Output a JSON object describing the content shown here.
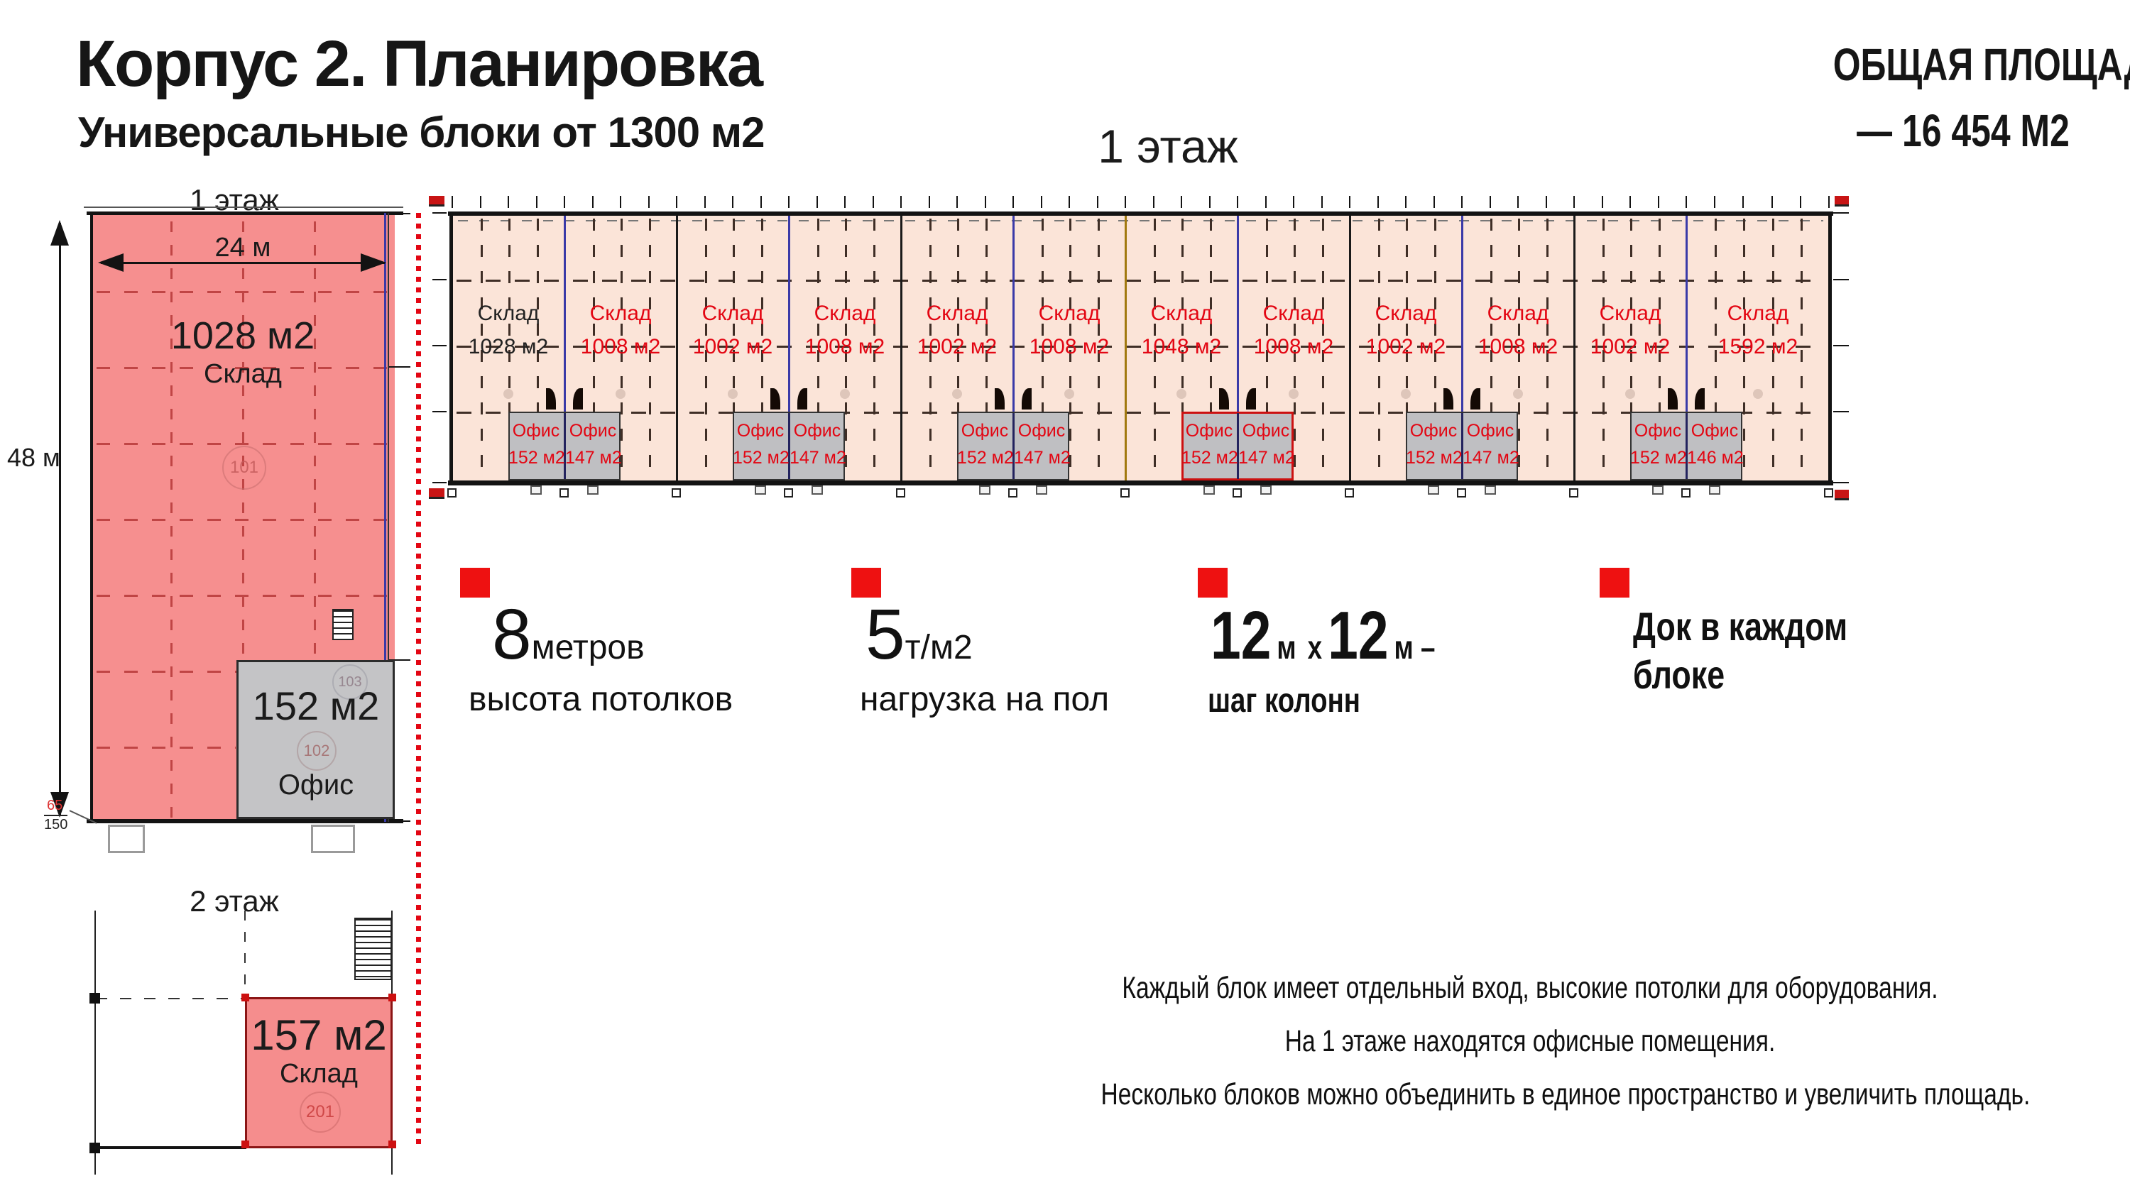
{
  "header": {
    "title": "Корпус 2. Планировка",
    "subtitle": "Универсальные блоки от 1300 м2",
    "total_area_line1": "ОБЩАЯ ПЛОЩАДЬ",
    "total_area_line2": "— 16 454  М2"
  },
  "floor1_plan": {
    "title": "1 этаж",
    "blocks": [
      {
        "label": "Склад",
        "area": "1028 м2",
        "dark": true
      },
      {
        "label": "Склад",
        "area": "1008 м2"
      },
      {
        "label": "Склад",
        "area": "1002 м2"
      },
      {
        "label": "Склад",
        "area": "1008 м2"
      },
      {
        "label": "Склад",
        "area": "1002 м2"
      },
      {
        "label": "Склад",
        "area": "1008 м2"
      },
      {
        "label": "Склад",
        "area": "1048 м2"
      },
      {
        "label": "Склад",
        "area": "1008 м2"
      },
      {
        "label": "Склад",
        "area": "1002 м2"
      },
      {
        "label": "Склад",
        "area": "1008 м2"
      },
      {
        "label": "Склад",
        "area": "1002 м2"
      },
      {
        "label": "Склад",
        "area": "1592 м2",
        "wide": true
      }
    ],
    "office_pairs": [
      {
        "at_boundary": 1,
        "left": {
          "label": "Офис",
          "area": "152 м2"
        },
        "right": {
          "label": "Офис",
          "area": "147 м2"
        }
      },
      {
        "at_boundary": 3,
        "left": {
          "label": "Офис",
          "area": "152 м2"
        },
        "right": {
          "label": "Офис",
          "area": "147 м2"
        }
      },
      {
        "at_boundary": 5,
        "left": {
          "label": "Офис",
          "area": "152 м2"
        },
        "right": {
          "label": "Офис",
          "area": "147 м2"
        }
      },
      {
        "at_boundary": 7,
        "left": {
          "label": "Офис",
          "area": "152 м2"
        },
        "right": {
          "label": "Офис",
          "area": "147 м2"
        },
        "highlight": true
      },
      {
        "at_boundary": 9,
        "left": {
          "label": "Офис",
          "area": "152 м2"
        },
        "right": {
          "label": "Офис",
          "area": "147 м2"
        }
      },
      {
        "at_boundary": 11,
        "left": {
          "label": "Офис",
          "area": "152 м2"
        },
        "right": {
          "label": "Офис",
          "area": "146 м2"
        }
      }
    ]
  },
  "left_plan": {
    "floor_label": "1 этаж",
    "dim_width": "24 м",
    "dim_height": "48 м",
    "warehouse": {
      "area": "1028 м2",
      "label": "Склад",
      "room": "101"
    },
    "office": {
      "area": "152 м2",
      "label": "Офис",
      "room": "102",
      "room_adjacent": "103"
    },
    "level_mark_top": "65",
    "level_mark_bottom": "150"
  },
  "floor2_plan": {
    "floor_label": "2 этаж",
    "unit": {
      "area": "157 м2",
      "label": "Склад",
      "room": "201"
    }
  },
  "features": [
    {
      "value": "8",
      "unit": "метров",
      "caption": "высота потолков"
    },
    {
      "value": "5",
      "unit": "т/м2",
      "caption": "нагрузка на пол"
    },
    {
      "n1": "12",
      "u1": "м",
      "x": "х",
      "n2": "12",
      "u2": "м –",
      "caption": "шаг колонн"
    },
    {
      "line1": "Док в каждом",
      "line2": "блоке"
    }
  ],
  "notes": [
    "Каждый блок имеет отдельный вход, высокие потолки для оборудования.",
    "На 1 этаже находятся офисные помещения.",
    "Несколько блоков можно объединить в единое пространство и увеличить площадь."
  ],
  "colors": {
    "accent_red": "#e30613",
    "bullet_red": "#ee1111",
    "salmon": "#f68f8f",
    "peach": "#fbe4d8",
    "office_gray": "#bfbfc2",
    "boundary_blue": "#3a3aa8",
    "boundary_black": "#1a1a1a",
    "gold": "#a1790f",
    "dash_brown": "#3f2e26"
  }
}
